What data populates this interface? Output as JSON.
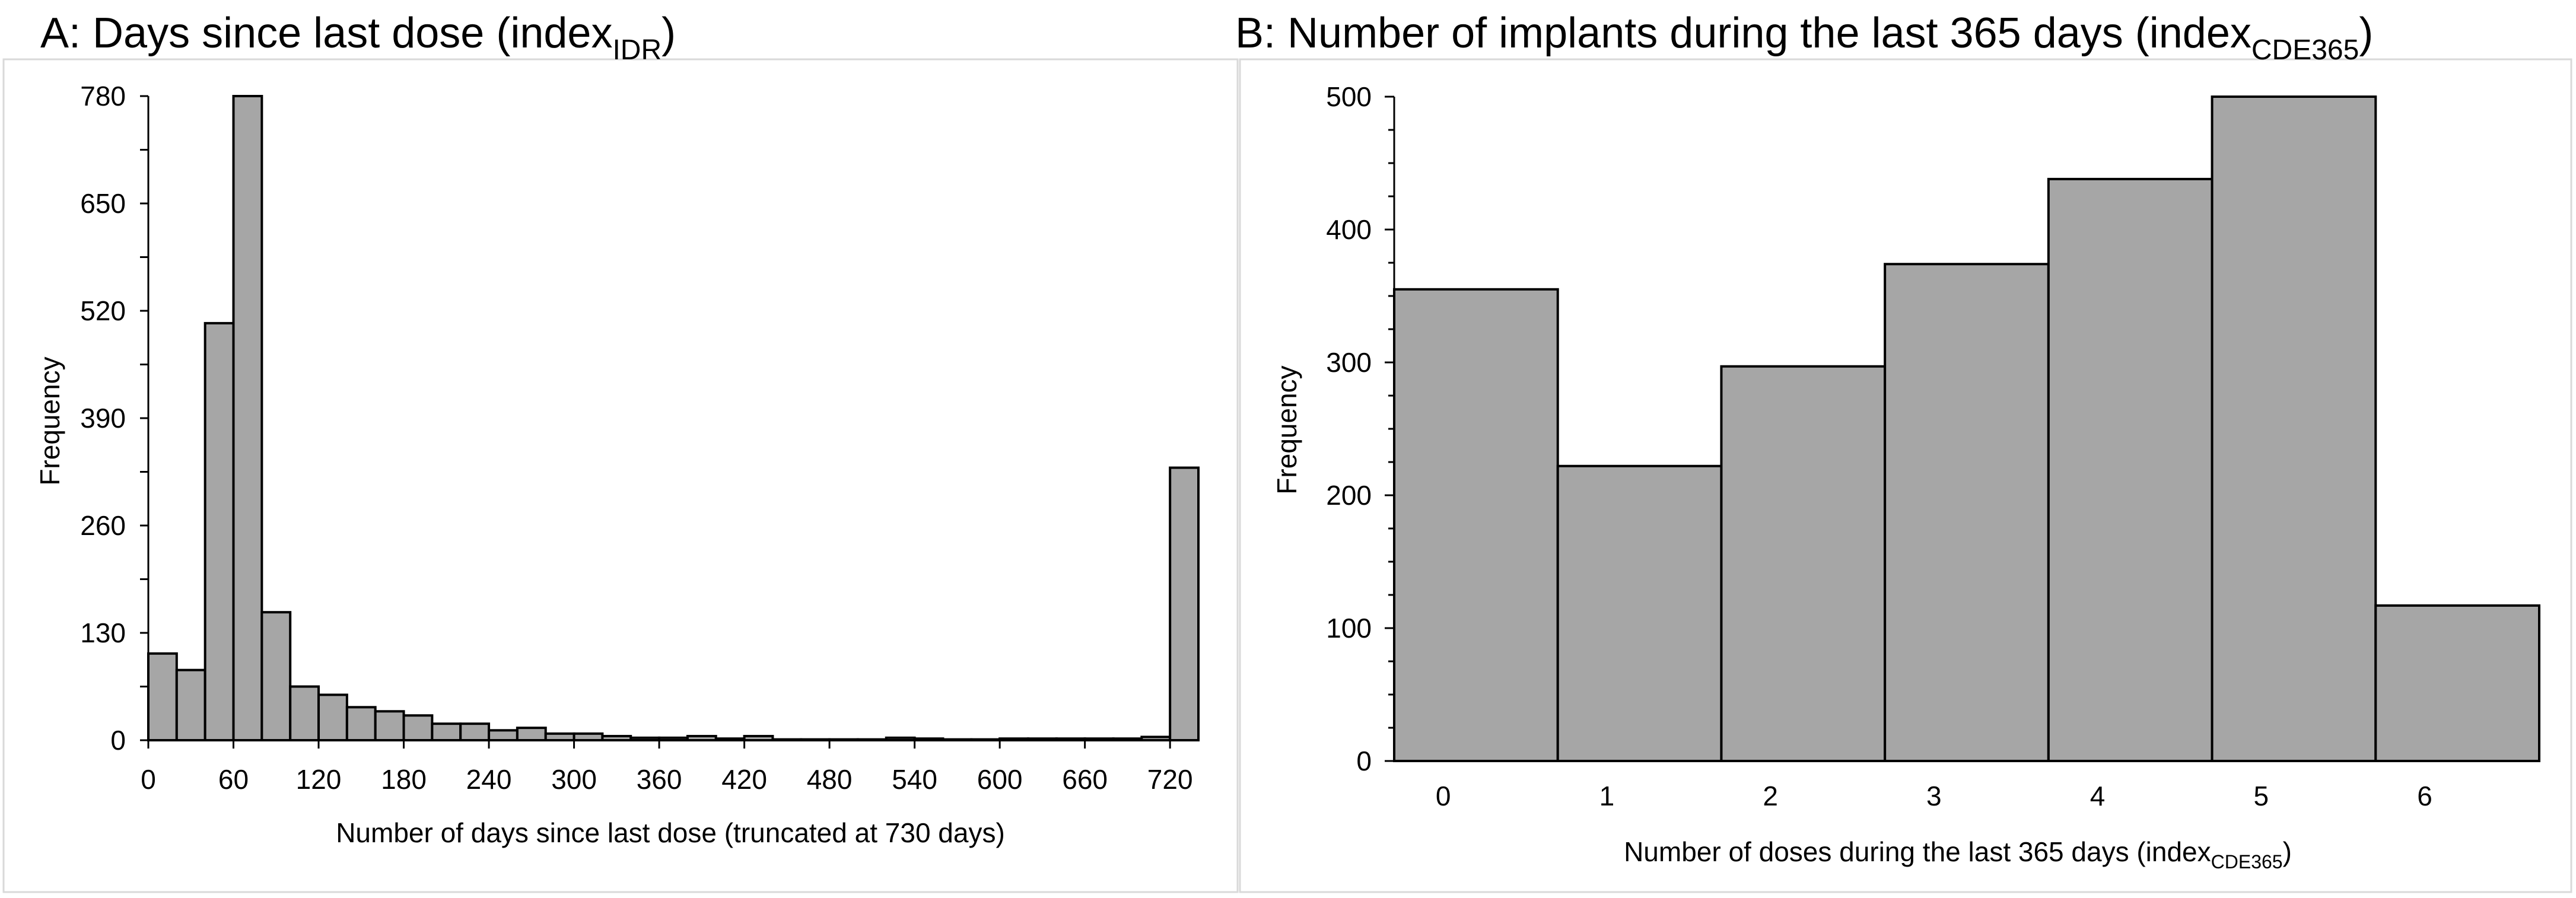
{
  "colors": {
    "bar_fill": "#a6a6a6",
    "bar_stroke": "#000000",
    "panel_border": "#d9d9d9"
  },
  "chart_data": [
    {
      "type": "bar",
      "title": "A: Days since last dose (index",
      "title_subscript": "IDR",
      "title_suffix": ")",
      "xlabel": "Number of days since last dose (truncated at 730 days)",
      "ylabel": "Frequency",
      "bin_width": 20,
      "x": [
        0,
        20,
        40,
        60,
        80,
        100,
        120,
        140,
        160,
        180,
        200,
        220,
        240,
        260,
        280,
        300,
        320,
        340,
        360,
        380,
        400,
        420,
        440,
        460,
        480,
        500,
        520,
        540,
        560,
        580,
        600,
        620,
        640,
        660,
        680,
        700,
        720
      ],
      "values": [
        105,
        85,
        505,
        780,
        155,
        65,
        55,
        40,
        35,
        30,
        20,
        20,
        12,
        15,
        8,
        8,
        5,
        3,
        3,
        5,
        2,
        5,
        1,
        1,
        1,
        1,
        3,
        2,
        1,
        1,
        2,
        2,
        2,
        2,
        2,
        4,
        330
      ],
      "ylim": [
        0,
        780
      ],
      "yticks": [
        0,
        130,
        260,
        390,
        520,
        650,
        780
      ],
      "xlim": [
        0,
        740
      ],
      "xticks": [
        0,
        60,
        120,
        180,
        240,
        300,
        360,
        420,
        480,
        540,
        600,
        660,
        720
      ],
      "legend": "none"
    },
    {
      "type": "bar",
      "title": "B: Number of implants during the last 365 days (index",
      "title_subscript": "CDE365",
      "title_suffix": ")",
      "xlabel": "Number of doses during the last 365 days (index",
      "xlabel_subscript": "CDE365",
      "xlabel_suffix": ")",
      "ylabel": "Frequency",
      "categories": [
        "0",
        "1",
        "2",
        "3",
        "4",
        "5",
        "6"
      ],
      "values": [
        355,
        222,
        297,
        374,
        438,
        500,
        117
      ],
      "ylim": [
        0,
        500
      ],
      "yticks": [
        0,
        100,
        200,
        300,
        400,
        500
      ],
      "legend": "none"
    }
  ]
}
